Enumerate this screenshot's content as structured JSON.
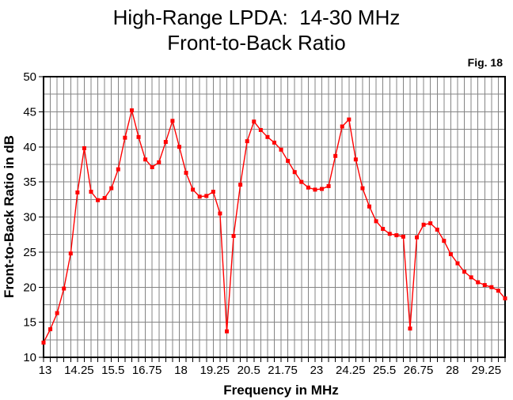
{
  "title": {
    "line1": "High-Range LPDA:  14-30 MHz",
    "line2": "Front-to-Back Ratio"
  },
  "fig_label": "Fig. 18",
  "axes": {
    "x_title": "Frequency in MHz",
    "y_title": "Front-to-Back Ratio in dB",
    "x_tick_labels": [
      "13",
      "14.25",
      "15.5",
      "16.75",
      "18",
      "19.25",
      "20.5",
      "21.75",
      "23",
      "24.25",
      "25.5",
      "26.75",
      "28",
      "29.25"
    ],
    "x_tick_values": [
      13,
      14.25,
      15.5,
      16.75,
      18,
      19.25,
      20.5,
      21.75,
      23,
      24.25,
      25.5,
      26.75,
      28,
      29.25
    ],
    "y_tick_labels": [
      "10",
      "15",
      "20",
      "25",
      "30",
      "35",
      "40",
      "45",
      "50"
    ],
    "y_tick_values": [
      10,
      15,
      20,
      25,
      30,
      35,
      40,
      45,
      50
    ]
  },
  "colors": {
    "series": "#ff0000",
    "grid": "#848484",
    "border": "#000000",
    "text": "#000000",
    "background": "#ffffff"
  },
  "chart_data": {
    "type": "line",
    "title": "High-Range LPDA: 14-30 MHz Front-to-Back Ratio",
    "xlabel": "Frequency in MHz",
    "ylabel": "Front-to-Back Ratio in dB",
    "xlim": [
      13,
      30
    ],
    "ylim": [
      10,
      50
    ],
    "x_grid_step": 0.25,
    "y_grid_step": 2.5,
    "grid": true,
    "legend": false,
    "marker": "square",
    "x": [
      13,
      13.25,
      13.5,
      13.75,
      14,
      14.25,
      14.5,
      14.75,
      15,
      15.25,
      15.5,
      15.75,
      16,
      16.25,
      16.5,
      16.75,
      17,
      17.25,
      17.5,
      17.75,
      18,
      18.25,
      18.5,
      18.75,
      19,
      19.25,
      19.5,
      19.75,
      20,
      20.25,
      20.5,
      20.75,
      21,
      21.25,
      21.5,
      21.75,
      22,
      22.25,
      22.5,
      22.75,
      23,
      23.25,
      23.5,
      23.75,
      24,
      24.25,
      24.5,
      24.75,
      25,
      25.25,
      25.5,
      25.75,
      26,
      26.25,
      26.5,
      26.75,
      27,
      27.25,
      27.5,
      27.75,
      28,
      28.25,
      28.5,
      28.75,
      29,
      29.25,
      29.5,
      29.75,
      30
    ],
    "y": [
      12.1,
      14.0,
      16.3,
      19.8,
      24.8,
      33.5,
      39.8,
      33.6,
      32.4,
      32.7,
      34.1,
      36.8,
      41.3,
      45.2,
      41.4,
      38.2,
      37.1,
      37.8,
      40.7,
      43.7,
      40.0,
      36.3,
      33.9,
      32.9,
      33.0,
      33.6,
      30.5,
      13.7,
      27.3,
      34.6,
      40.8,
      43.6,
      42.4,
      41.4,
      40.6,
      39.6,
      38.0,
      36.4,
      35.0,
      34.2,
      33.9,
      34.0,
      34.4,
      38.7,
      42.9,
      43.9,
      38.2,
      34.1,
      31.5,
      29.4,
      28.3,
      27.6,
      27.4,
      27.2,
      14.1,
      27.1,
      28.9,
      29.1,
      28.2,
      26.6,
      24.7,
      23.4,
      22.2,
      21.4,
      20.7,
      20.3,
      20.0,
      19.5,
      18.4
    ]
  }
}
